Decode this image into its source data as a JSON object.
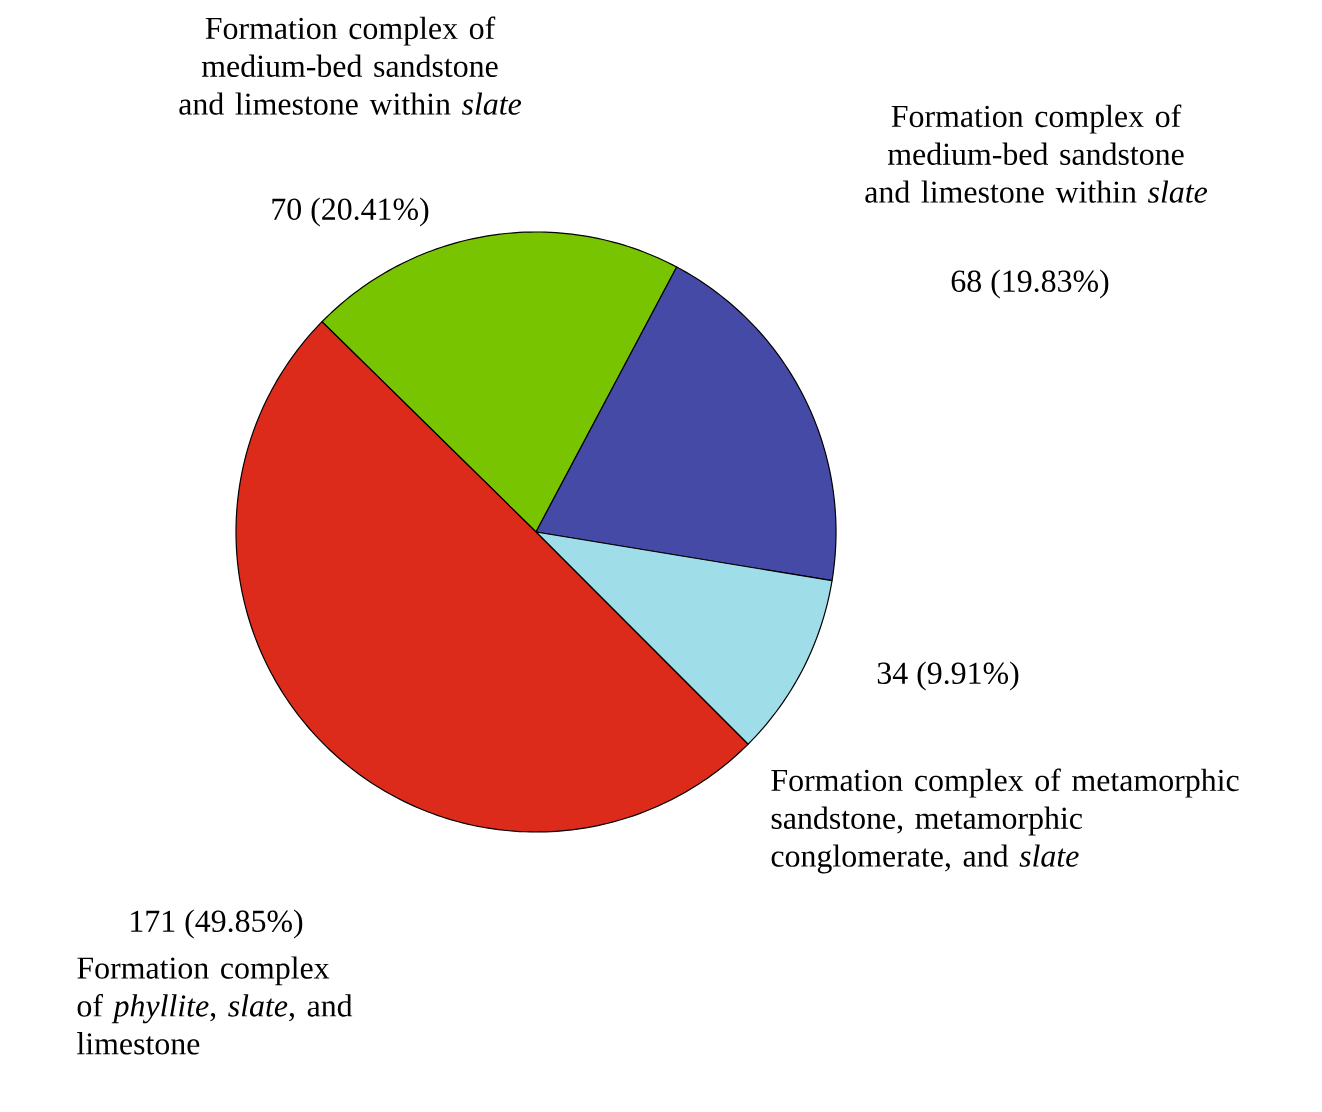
{
  "chart_data": {
    "type": "pie",
    "categories": [
      "Formation complex of medium-bed sandstone and limestone within *slate*",
      "Formation complex of medium-bed sandstone and limestone within *slate*",
      "Formation complex of metamorphic sandstone, metamorphic conglomerate, and *slate*",
      "Formation complex of *phyllite*, *slate*, and limestone"
    ],
    "values": [
      70,
      68,
      34,
      171
    ],
    "value_labels": [
      "70 (20.41%)",
      "68 (19.83%)",
      "34 (9.91%)",
      "171 (49.85%)"
    ],
    "colors": [
      "#78c400",
      "#444aa6",
      "#9fdde9",
      "#dd2b1b"
    ]
  }
}
